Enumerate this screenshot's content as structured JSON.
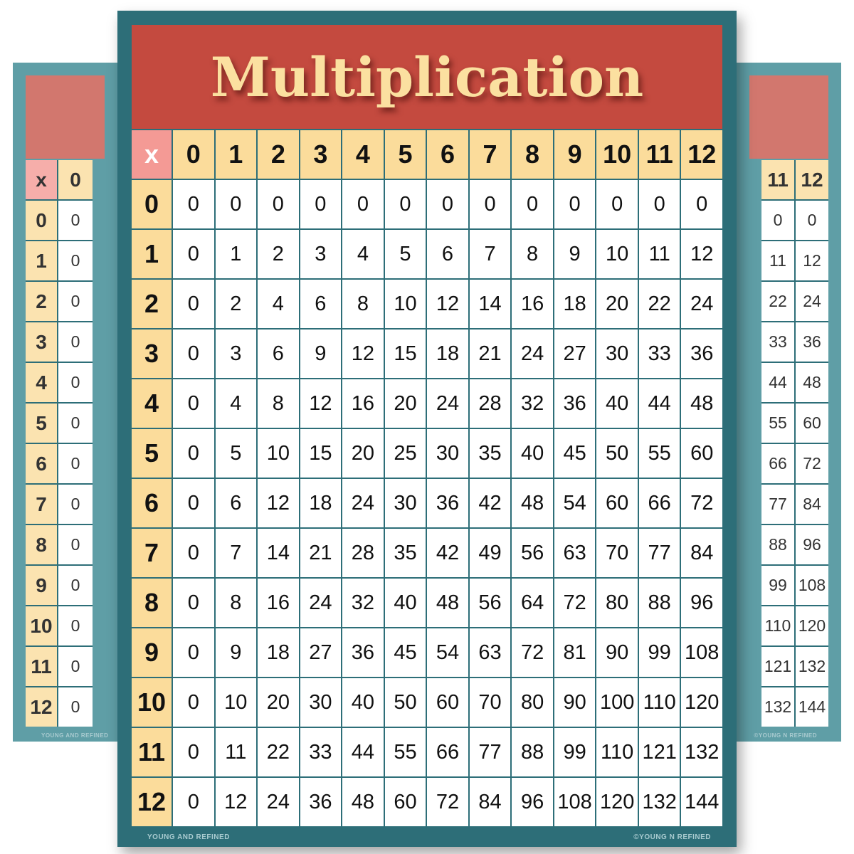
{
  "poster": {
    "title": "Multiplication",
    "corner_label": "x",
    "column_headers": [
      "0",
      "1",
      "2",
      "3",
      "4",
      "5",
      "6",
      "7",
      "8",
      "9",
      "10",
      "11",
      "12"
    ],
    "row_headers": [
      "0",
      "1",
      "2",
      "3",
      "4",
      "5",
      "6",
      "7",
      "8",
      "9",
      "10",
      "11",
      "12"
    ],
    "rows": [
      [
        0,
        0,
        0,
        0,
        0,
        0,
        0,
        0,
        0,
        0,
        0,
        0,
        0
      ],
      [
        0,
        1,
        2,
        3,
        4,
        5,
        6,
        7,
        8,
        9,
        10,
        11,
        12
      ],
      [
        0,
        2,
        4,
        6,
        8,
        10,
        12,
        14,
        16,
        18,
        20,
        22,
        24
      ],
      [
        0,
        3,
        6,
        9,
        12,
        15,
        18,
        21,
        24,
        27,
        30,
        33,
        36
      ],
      [
        0,
        4,
        8,
        12,
        16,
        20,
        24,
        28,
        32,
        36,
        40,
        44,
        48
      ],
      [
        0,
        5,
        10,
        15,
        20,
        25,
        30,
        35,
        40,
        45,
        50,
        55,
        60
      ],
      [
        0,
        6,
        12,
        18,
        24,
        30,
        36,
        42,
        48,
        54,
        60,
        66,
        72
      ],
      [
        0,
        7,
        14,
        21,
        28,
        35,
        42,
        49,
        56,
        63,
        70,
        77,
        84
      ],
      [
        0,
        8,
        16,
        24,
        32,
        40,
        48,
        56,
        64,
        72,
        80,
        88,
        96
      ],
      [
        0,
        9,
        18,
        27,
        36,
        45,
        54,
        63,
        72,
        81,
        90,
        99,
        108
      ],
      [
        0,
        10,
        20,
        30,
        40,
        50,
        60,
        70,
        80,
        90,
        100,
        110,
        120
      ],
      [
        0,
        11,
        22,
        33,
        44,
        55,
        66,
        77,
        88,
        99,
        110,
        121,
        132
      ],
      [
        0,
        12,
        24,
        36,
        48,
        60,
        72,
        84,
        96,
        108,
        120,
        132,
        144
      ]
    ],
    "footer_left": "YOUNG AND REFINED",
    "footer_right": "©YOUNG N REFINED"
  },
  "colors": {
    "frame": "#2d6e78",
    "title_banner": "#c44a3f",
    "title_text": "#fbe0a0",
    "header_cells": "#fbdc9b",
    "corner_cell": "#f49a95"
  }
}
